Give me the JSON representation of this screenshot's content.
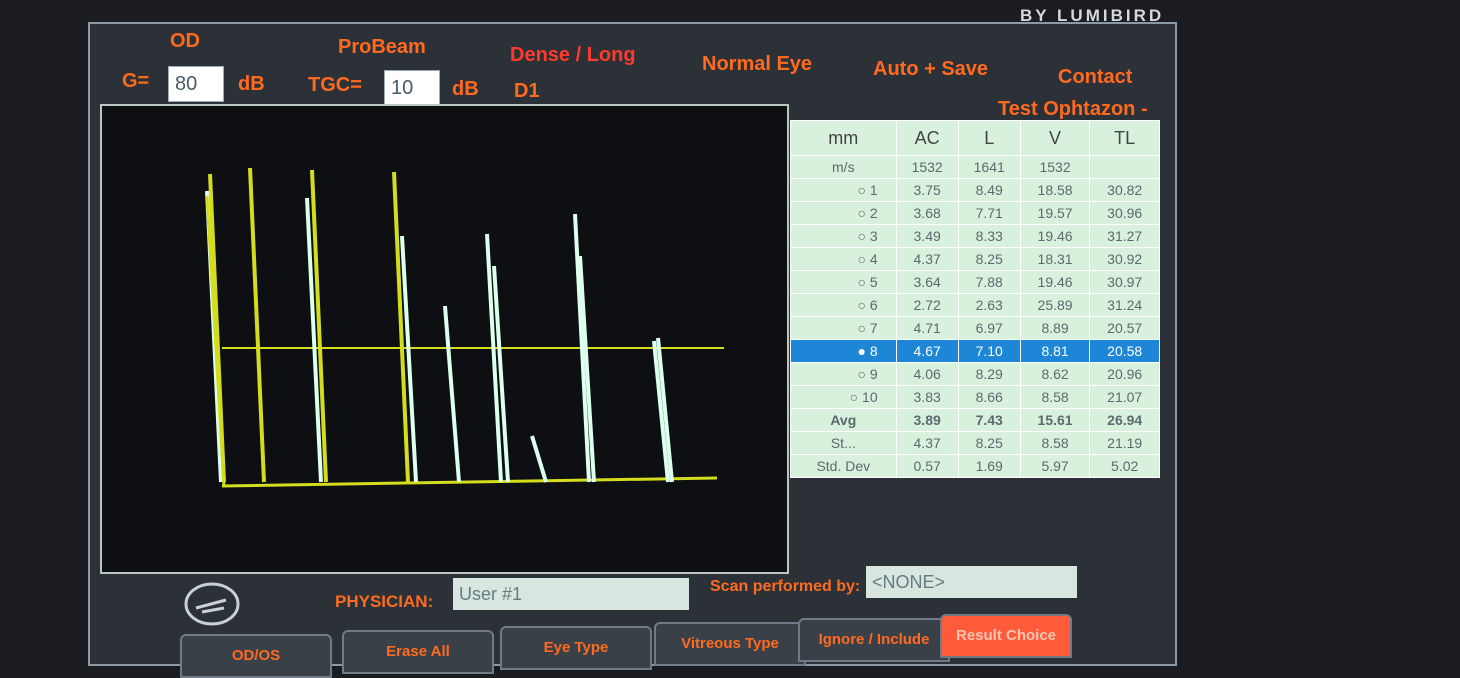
{
  "brand": "BY LUMIBIRD",
  "header": {
    "eye": "OD",
    "probe": "ProBeam",
    "density": "Dense / Long",
    "eye_type": "Normal Eye",
    "mode": "Auto + Save",
    "contact": "Contact",
    "gain_label": "G=",
    "gain": "80",
    "gain_unit": "dB",
    "tgc_label": "TGC=",
    "tgc": "10",
    "tgc_unit": "dB",
    "display": "D1",
    "patient": "Test Ophtazon -"
  },
  "table": {
    "columns": [
      "mm",
      "AC",
      "L",
      "V",
      "TL"
    ],
    "velocity": {
      "label": "m/s",
      "values": [
        "1532",
        "1641",
        "1532"
      ]
    },
    "rows": [
      [
        "1",
        "3.75",
        "8.49",
        "18.58",
        "30.82"
      ],
      [
        "2",
        "3.68",
        "7.71",
        "19.57",
        "30.96"
      ],
      [
        "3",
        "3.49",
        "8.33",
        "19.46",
        "31.27"
      ],
      [
        "4",
        "4.37",
        "8.25",
        "18.31",
        "30.92"
      ],
      [
        "5",
        "3.64",
        "7.88",
        "19.46",
        "30.97"
      ],
      [
        "6",
        "2.72",
        "2.63",
        "25.89",
        "31.24"
      ],
      [
        "7",
        "4.71",
        "6.97",
        "8.89",
        "20.57"
      ],
      [
        "8",
        "4.67",
        "7.10",
        "8.81",
        "20.58"
      ],
      [
        "9",
        "4.06",
        "8.29",
        "8.62",
        "20.96"
      ],
      [
        "10",
        "3.83",
        "8.66",
        "8.58",
        "21.07"
      ]
    ],
    "selected_row": 7,
    "summary": [
      [
        "Avg",
        "3.89",
        "7.43",
        "15.61",
        "26.94"
      ],
      [
        "St...",
        "4.37",
        "8.25",
        "8.58",
        "21.19"
      ],
      [
        "Std. Dev",
        "0.57",
        "1.69",
        "5.97",
        "5.02"
      ]
    ],
    "selected_summary": 0
  },
  "footer": {
    "physician_label": "PHYSICIAN:",
    "physician": "User #1",
    "scan_label": "Scan performed by:",
    "scan_by": "<NONE>",
    "buttons": [
      "OD/OS",
      "Erase All",
      "Eye Type",
      "Vitreous Type",
      "Ignore / Include",
      "Result Choice"
    ]
  }
}
